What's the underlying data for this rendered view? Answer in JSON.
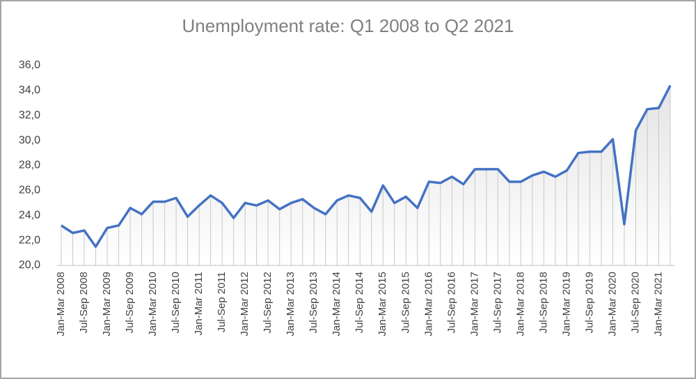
{
  "chart_data": {
    "type": "line",
    "title": "Unemployment  rate: Q1 2008 to Q2 2021",
    "categories": [
      "Jan-Mar 2008",
      null,
      "Jul-Sep 2008",
      null,
      "Jan-Mar 2009",
      null,
      "Jul-Sep 2009",
      null,
      "Jan-Mar 2010",
      null,
      "Jul-Sep 2010",
      null,
      "Jan-Mar 2011",
      null,
      "Jul-Sep 2011",
      null,
      "Jan-Mar 2012",
      null,
      "Jul-Sep 2012",
      null,
      "Jan-Mar 2013",
      null,
      "Jul-Sep 2013",
      null,
      "Jan-Mar 2014",
      null,
      "Jul-Sep 2014",
      null,
      "Jan-Mar 2015",
      null,
      "Jul-Sep 2015",
      null,
      "Jan-Mar 2016",
      null,
      "Jul-Sep 2016",
      null,
      "Jan-Mar 2017",
      null,
      "Jul-Sep 2017",
      null,
      "Jan-Mar 2018",
      null,
      "Jul-Sep 2018",
      null,
      "Jan-Mar 2019",
      null,
      "Jul-Sep 2019",
      null,
      "Jan-Mar 2020",
      null,
      "Jul-Sep 2020",
      null,
      "Jan-Mar 2021",
      null
    ],
    "values": [
      23.2,
      22.6,
      22.8,
      21.5,
      23.0,
      23.2,
      24.6,
      24.1,
      25.1,
      25.1,
      25.4,
      23.9,
      24.8,
      25.6,
      25.0,
      23.8,
      25.0,
      24.8,
      25.2,
      24.5,
      25.0,
      25.3,
      24.6,
      24.1,
      25.2,
      25.6,
      25.4,
      24.3,
      26.4,
      25.0,
      25.5,
      24.6,
      26.7,
      26.6,
      27.1,
      26.5,
      27.7,
      27.7,
      27.7,
      26.7,
      26.7,
      27.2,
      27.5,
      27.1,
      27.6,
      29.0,
      29.1,
      29.1,
      30.1,
      23.3,
      30.8,
      32.5,
      32.6,
      34.4
    ],
    "color": "#4472c4",
    "ylim": [
      20,
      36
    ],
    "yticks": [
      {
        "value": 20,
        "label": "20,0"
      },
      {
        "value": 22,
        "label": "22,0"
      },
      {
        "value": 24,
        "label": "24,0"
      },
      {
        "value": 26,
        "label": "26,0"
      },
      {
        "value": 28,
        "label": "28,0"
      },
      {
        "value": 30,
        "label": "30,0"
      },
      {
        "value": 32,
        "label": "32,0"
      },
      {
        "value": 34,
        "label": "34,0"
      },
      {
        "value": 36,
        "label": "36,0"
      }
    ]
  }
}
